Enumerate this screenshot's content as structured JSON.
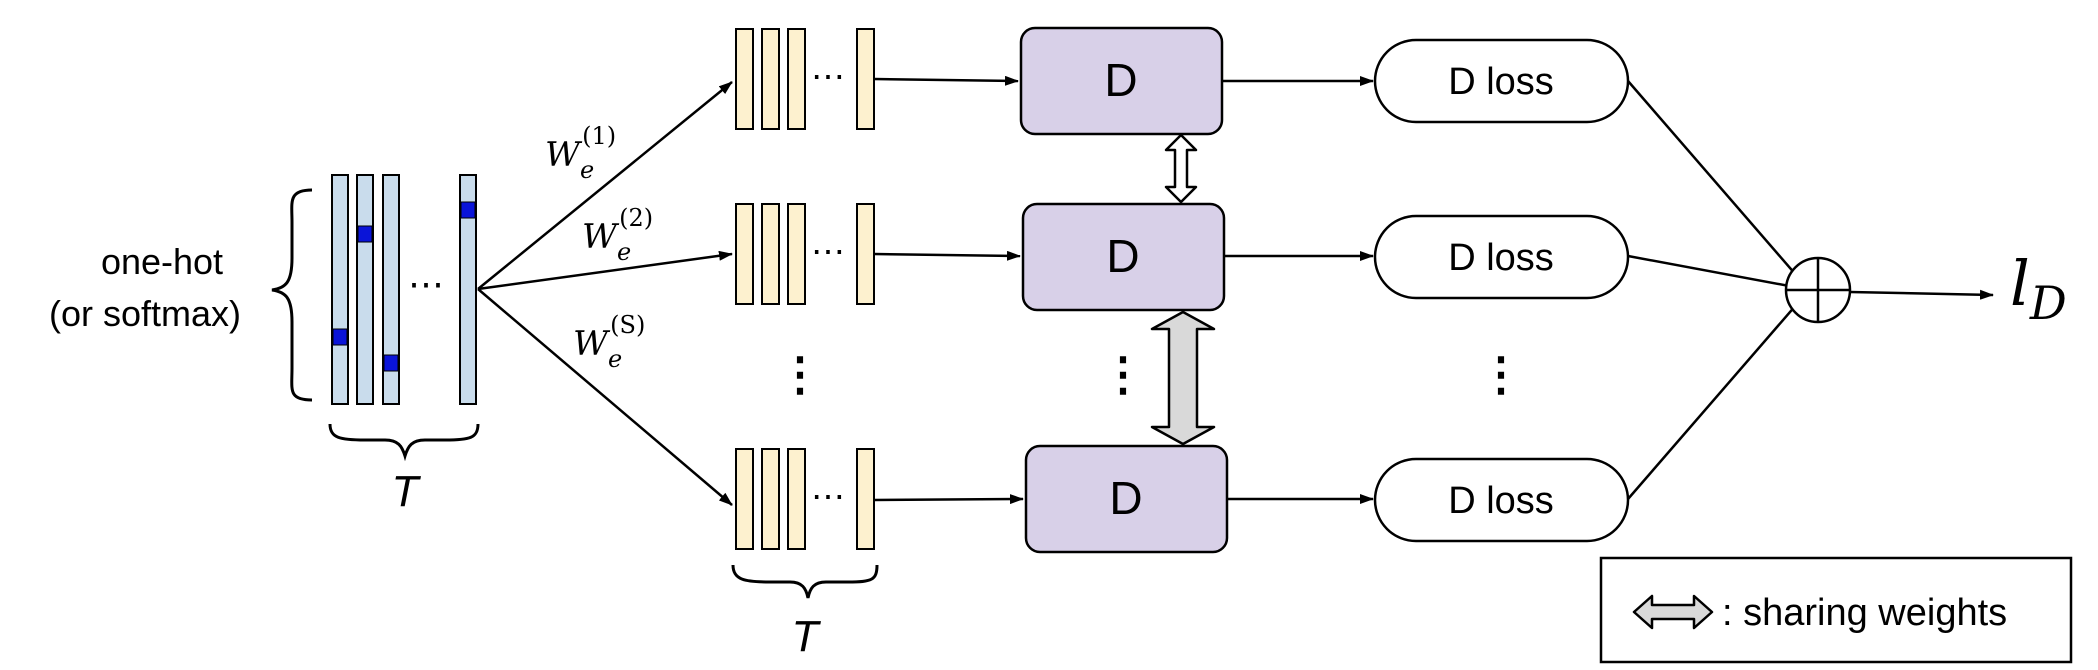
{
  "input": {
    "label_line1": "one-hot",
    "label_line2": "(or softmax)",
    "dots": "⋯",
    "time_label": "T",
    "cell_color": "#c9dcec",
    "hot_color": "#0a14d8"
  },
  "embeddings": {
    "weights": [
      {
        "base": "W",
        "sub": "e",
        "sup": "(1)"
      },
      {
        "base": "W",
        "sub": "e",
        "sup": "(2)"
      },
      {
        "base": "W",
        "sub": "e",
        "sup": "(S)"
      }
    ],
    "dots": "⋯",
    "time_label": "T",
    "cell_color": "#fdf1cf"
  },
  "discriminators": {
    "label": "D",
    "fill_color": "#d8d0e8"
  },
  "losses": {
    "label": "D loss"
  },
  "vertical_dots": "⋮",
  "output": {
    "base": "l",
    "sub": "D"
  },
  "legend": {
    "text": ": sharing weights",
    "arrow_color": "#d9d9d9"
  }
}
